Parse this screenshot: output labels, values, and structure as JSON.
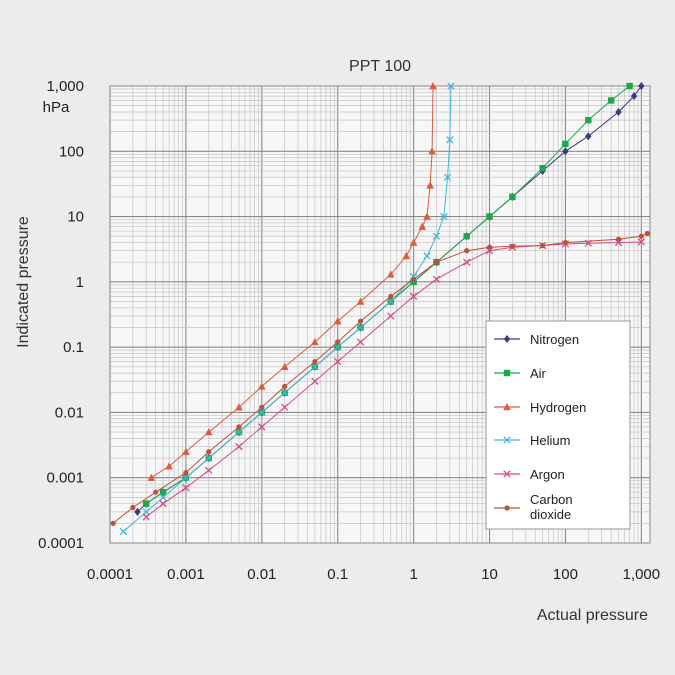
{
  "chart_data": {
    "type": "line",
    "title": "PPT 100",
    "xlabel": "Actual pressure",
    "ylabel": "Indicated pressure",
    "yunit": "hPa",
    "x_scale": "log",
    "y_scale": "log",
    "xlim": [
      0.0001,
      1300
    ],
    "ylim": [
      0.0001,
      1000
    ],
    "grid": true,
    "legend_position": "right",
    "x_ticks": [
      {
        "value": 0.0001,
        "label": "0.0001"
      },
      {
        "value": 0.001,
        "label": "0.001"
      },
      {
        "value": 0.01,
        "label": "0.01"
      },
      {
        "value": 0.1,
        "label": "0.1"
      },
      {
        "value": 1,
        "label": "1"
      },
      {
        "value": 10,
        "label": "10"
      },
      {
        "value": 100,
        "label": "100"
      },
      {
        "value": 1000,
        "label": "1,000"
      }
    ],
    "y_ticks": [
      {
        "value": 1000,
        "label": "1,000"
      },
      {
        "value": 100,
        "label": "100"
      },
      {
        "value": 10,
        "label": "10"
      },
      {
        "value": 1,
        "label": "1"
      },
      {
        "value": 0.1,
        "label": "0.1"
      },
      {
        "value": 0.01,
        "label": "0.01"
      },
      {
        "value": 0.001,
        "label": "0.001"
      },
      {
        "value": 0.0001,
        "label": "0.0001"
      }
    ],
    "series": [
      {
        "name": "Nitrogen",
        "color": "#3a3a8c",
        "marker": "diamond",
        "x": [
          0.00023,
          0.0003,
          0.0005,
          0.001,
          0.002,
          0.005,
          0.01,
          0.02,
          0.05,
          0.1,
          0.2,
          0.5,
          1,
          2,
          5,
          10,
          20,
          50,
          100,
          200,
          500,
          800,
          1000
        ],
        "y": [
          0.0003,
          0.0004,
          0.0006,
          0.001,
          0.002,
          0.005,
          0.01,
          0.02,
          0.05,
          0.1,
          0.2,
          0.5,
          1,
          2,
          5,
          10,
          20,
          50,
          100,
          170,
          400,
          700,
          1000
        ]
      },
      {
        "name": "Air",
        "color": "#1aa84a",
        "marker": "square",
        "x": [
          0.0003,
          0.0005,
          0.001,
          0.002,
          0.005,
          0.01,
          0.02,
          0.05,
          0.1,
          0.2,
          0.5,
          1,
          2,
          5,
          10,
          20,
          50,
          100,
          200,
          400,
          700
        ],
        "y": [
          0.0004,
          0.0006,
          0.001,
          0.002,
          0.005,
          0.01,
          0.02,
          0.05,
          0.1,
          0.2,
          0.5,
          1,
          2,
          5,
          10,
          20,
          55,
          130,
          300,
          600,
          1000
        ]
      },
      {
        "name": "Hydrogen",
        "color": "#e05a40",
        "marker": "triangle",
        "x": [
          0.00035,
          0.0006,
          0.001,
          0.002,
          0.005,
          0.01,
          0.02,
          0.05,
          0.1,
          0.2,
          0.5,
          0.8,
          1,
          1.3,
          1.5,
          1.65,
          1.75,
          1.8
        ],
        "y": [
          0.001,
          0.0015,
          0.0025,
          0.005,
          0.012,
          0.025,
          0.05,
          0.12,
          0.25,
          0.5,
          1.3,
          2.5,
          4,
          7,
          10,
          30,
          100,
          1000
        ]
      },
      {
        "name": "Helium",
        "color": "#44b8d8",
        "marker": "x",
        "x": [
          0.00015,
          0.0003,
          0.0005,
          0.001,
          0.002,
          0.005,
          0.01,
          0.02,
          0.05,
          0.1,
          0.2,
          0.5,
          1,
          1.5,
          2,
          2.5,
          2.8,
          3,
          3.1
        ],
        "y": [
          0.00015,
          0.0003,
          0.0005,
          0.001,
          0.002,
          0.005,
          0.01,
          0.02,
          0.05,
          0.1,
          0.2,
          0.5,
          1.2,
          2.5,
          5,
          10,
          40,
          150,
          1000
        ]
      },
      {
        "name": "Argon",
        "color": "#d84a8a",
        "marker": "x",
        "x": [
          0.0003,
          0.0005,
          0.001,
          0.002,
          0.005,
          0.01,
          0.02,
          0.05,
          0.1,
          0.2,
          0.5,
          1,
          2,
          5,
          10,
          20,
          50,
          100,
          200,
          500,
          1000
        ],
        "y": [
          0.00025,
          0.0004,
          0.0007,
          0.0013,
          0.003,
          0.006,
          0.012,
          0.03,
          0.06,
          0.12,
          0.3,
          0.6,
          1.1,
          2,
          3,
          3.4,
          3.6,
          3.8,
          3.9,
          4.0,
          4.1
        ]
      },
      {
        "name": "Carbon dioxide",
        "name_lines": [
          "Carbon",
          "dioxide"
        ],
        "color": "#c0503a",
        "marker": "circle",
        "x": [
          0.00011,
          0.0002,
          0.0004,
          0.001,
          0.002,
          0.005,
          0.01,
          0.02,
          0.05,
          0.1,
          0.2,
          0.5,
          1,
          2,
          5,
          10,
          20,
          50,
          100,
          500,
          1000,
          1200
        ],
        "y": [
          0.0002,
          0.00035,
          0.0006,
          0.0012,
          0.0025,
          0.006,
          0.012,
          0.025,
          0.06,
          0.12,
          0.25,
          0.6,
          1.1,
          2,
          3,
          3.4,
          3.5,
          3.6,
          4,
          4.5,
          5,
          5.5
        ]
      }
    ]
  }
}
